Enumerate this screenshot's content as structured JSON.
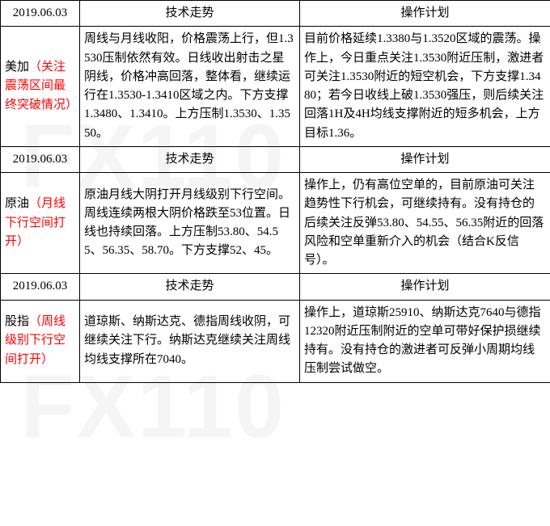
{
  "watermark": "FX110",
  "headers": {
    "tech": "技术走势",
    "plan": "操作计划"
  },
  "sections": [
    {
      "date": "2019.06.03",
      "label_main": "美加",
      "label_note": "（关注震荡区间最终突破情况）",
      "tech": "周线与月线收阳，价格震荡上行，但1.3530压制依然有效。日线收出射击之星阴线，价格冲高回落，整体看，继续运行在1.3530-1.3410区域之内。下方支撑1.3480、1.3410。上方压制1.3530、1.3550。",
      "plan": "目前价格延续1.3380与1.3520区域的震荡。操作上，今日重点关注1.3530附近压制，激进者可关注1.3530附近的短空机会，下方支撑1.3480；若今日收线上破1.3530强压，则后续关注回落1H及4H均线支撑附近的短多机会，上方目标1.36。"
    },
    {
      "date": "2019.06.03",
      "label_main": "原油",
      "label_note": "（月线下行空间打开）",
      "tech": "原油月线大阴打开月线级别下行空间。周线连续两根大阴价格跌至53位置。日线也持续回落。上方压制53.80、54.55、56.35、58.70。下方支撑52、45。",
      "plan": "操作上，仍有高位空单的，目前原油可关注趋势性下行机会，可继续持有。没有持仓的后续关注反弹53.80、54.55、56.35附近的回落风险和空单重新介入的机会（结合K反信号）。"
    },
    {
      "date": "2019.06.03",
      "label_main": "股指",
      "label_note": "（周线级别下行空间打开）",
      "tech": "道琼斯、纳斯达克、德指周线收阴，可继续关注下行。纳斯达克继续关注周线均线支撑所在7040。",
      "plan": "操作上，道琼斯25910、纳斯达克7640与德指12320附近压制附近的空单可带好保护损继续持有。没有持仓的激进者可反弹小周期均线压制尝试做空。"
    }
  ]
}
